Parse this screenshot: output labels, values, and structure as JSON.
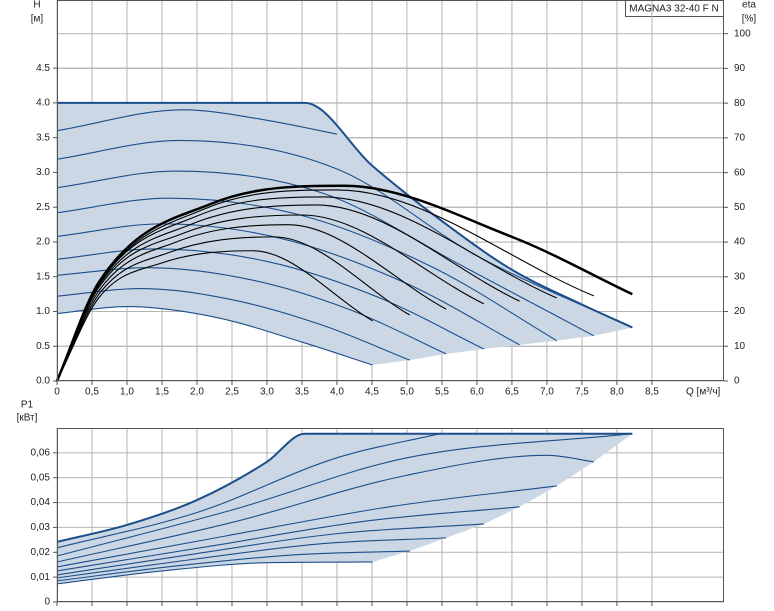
{
  "chart_data": [
    {
      "type": "line",
      "title": "MAGNA3 32-40 F N",
      "y_label": "H",
      "y_unit": "[м]",
      "y2_label": "eta",
      "y2_unit": "[%]",
      "x_label": "Q [м³/ч]",
      "xlim": [
        0,
        9.53
      ],
      "ylim": [
        0,
        5.48
      ],
      "y2lim": [
        0,
        109.7
      ],
      "xticks": [
        0,
        {
          "value": 0.5,
          "label": "0,5"
        },
        {
          "value": 1,
          "label": "1,0"
        },
        {
          "value": 1.5,
          "label": "1,5"
        },
        {
          "value": 2,
          "label": "2,0"
        },
        {
          "value": 2.5,
          "label": "2,5"
        },
        {
          "value": 3,
          "label": "3,0"
        },
        {
          "value": 3.5,
          "label": "3,5"
        },
        {
          "value": 4,
          "label": "4,0"
        },
        {
          "value": 4.5,
          "label": "4,5"
        },
        {
          "value": 5,
          "label": "5,0"
        },
        {
          "value": 5.5,
          "label": "5,5"
        },
        {
          "value": 6,
          "label": "6,0"
        },
        {
          "value": 6.5,
          "label": "6,5"
        },
        {
          "value": 7,
          "label": "7,0"
        },
        {
          "value": 7.5,
          "label": "7,5"
        },
        {
          "value": 8,
          "label": "8,0"
        },
        {
          "value": 8.5,
          "label": "8,5"
        }
      ],
      "yticks": [
        {
          "value": 0,
          "label": "0.0"
        },
        0.5,
        {
          "value": 1,
          "label": "1.0"
        },
        1.5,
        {
          "value": 2,
          "label": "2.0"
        },
        2.5,
        {
          "value": 3,
          "label": "3.0"
        },
        3.5,
        {
          "value": 4,
          "label": "4.0"
        },
        4.5
      ],
      "y2ticks": [
        0,
        10,
        20,
        30,
        40,
        50,
        60,
        70,
        80,
        90,
        100
      ],
      "grid": true,
      "area_color": "#cbd7e4",
      "series": [
        {
          "color": "#1c4f8a",
          "x": [
            0,
            1,
            2.25,
            3.5,
            4.51
          ],
          "values": [
            0.97,
            1.07,
            0.92,
            0.56,
            0.23
          ]
        },
        {
          "color": "#1c4f8a",
          "x": [
            0,
            1.2,
            2.5,
            3.8,
            5.04
          ],
          "values": [
            1.22,
            1.33,
            1.17,
            0.8,
            0.3
          ]
        },
        {
          "color": "#1c4f8a",
          "x": [
            0,
            1.3,
            2.8,
            4.2,
            5.56
          ],
          "values": [
            1.52,
            1.63,
            1.45,
            1.02,
            0.39
          ]
        },
        {
          "color": "#1c4f8a",
          "x": [
            0,
            1.4,
            3,
            4.6,
            6.1
          ],
          "values": [
            1.75,
            1.9,
            1.72,
            1.2,
            0.46
          ]
        },
        {
          "color": "#1c4f8a",
          "x": [
            0,
            1.5,
            3.2,
            5,
            6.61
          ],
          "values": [
            2.08,
            2.26,
            2.05,
            1.4,
            0.52
          ]
        },
        {
          "color": "#1c4f8a",
          "x": [
            0,
            1.6,
            3.5,
            5.4,
            7.14
          ],
          "values": [
            2.42,
            2.63,
            2.38,
            1.62,
            0.58
          ]
        },
        {
          "color": "#1c4f8a",
          "x": [
            0,
            1.7,
            3.8,
            5.8,
            7.67
          ],
          "values": [
            2.78,
            3.02,
            2.7,
            1.65,
            0.65
          ]
        },
        {
          "color": "#1c4f8a",
          "x": [
            0,
            1.75,
            4,
            6,
            8.22
          ],
          "values": [
            3.19,
            3.46,
            3.05,
            1.8,
            0.77
          ]
        },
        {
          "color": "#1c4f8a",
          "x": [
            0,
            1.8,
            3,
            4
          ],
          "values": [
            3.6,
            3.9,
            3.75,
            3.55
          ]
        },
        {
          "color": "#1c4f8a",
          "width": 2,
          "x": [
            0,
            3.54,
            4.5,
            5.5,
            6.5,
            7.5,
            8.22
          ],
          "values": [
            4,
            4,
            3.1,
            2.3,
            1.6,
            1.1,
            0.77
          ]
        },
        {
          "color": "#000000",
          "axis": "y2",
          "x": [
            0,
            0.6,
            1.5,
            2.8,
            4.51
          ],
          "values": [
            0,
            24,
            34,
            37.5,
            17.3
          ]
        },
        {
          "color": "#000000",
          "axis": "y2",
          "x": [
            0,
            0.6,
            1.6,
            3.1,
            5.04
          ],
          "values": [
            0,
            25,
            37,
            41.5,
            19
          ]
        },
        {
          "color": "#000000",
          "axis": "y2",
          "x": [
            0,
            0.6,
            1.7,
            3.3,
            5.56
          ],
          "values": [
            0,
            26,
            40,
            45,
            20.7
          ]
        },
        {
          "color": "#000000",
          "axis": "y2",
          "x": [
            0,
            0.6,
            1.8,
            3.5,
            6.1
          ],
          "values": [
            0,
            27,
            42.5,
            47.8,
            22.2
          ]
        },
        {
          "color": "#000000",
          "axis": "y2",
          "x": [
            0,
            0.6,
            1.9,
            3.7,
            6.61
          ],
          "values": [
            0,
            27.5,
            45,
            50.7,
            23
          ]
        },
        {
          "color": "#000000",
          "axis": "y2",
          "x": [
            0,
            0.6,
            2,
            3.8,
            7.14
          ],
          "values": [
            0,
            28,
            47.5,
            53,
            23.9
          ]
        },
        {
          "color": "#000000",
          "axis": "y2",
          "x": [
            0,
            0.6,
            2.1,
            4,
            7.67
          ],
          "values": [
            0,
            28,
            49.5,
            55,
            24.5
          ]
        },
        {
          "color": "#000000",
          "axis": "y2",
          "width": 2.5,
          "x": [
            0,
            0.6,
            2.2,
            4.1,
            6.5,
            8.22
          ],
          "values": [
            0,
            28.5,
            51,
            56.2,
            41.5,
            25
          ]
        }
      ]
    },
    {
      "type": "line",
      "y_label": "P1",
      "y_unit": "[кВт]",
      "ylim": [
        0,
        0.07
      ],
      "yticks": [
        0,
        {
          "value": 0.01,
          "label": "0,01"
        },
        {
          "value": 0.02,
          "label": "0,02"
        },
        {
          "value": 0.03,
          "label": "0,03"
        },
        {
          "value": 0.04,
          "label": "0,04"
        },
        {
          "value": 0.05,
          "label": "0,05"
        },
        {
          "value": 0.06,
          "label": "0,06"
        }
      ],
      "grid": true,
      "area_color": "#cbd7e4",
      "series": [
        {
          "color": "#1c4f8a",
          "x": [
            0,
            1.5,
            3,
            4.51
          ],
          "values": [
            0.0073,
            0.0125,
            0.0158,
            0.0161
          ]
        },
        {
          "color": "#1c4f8a",
          "x": [
            0,
            1.7,
            3.4,
            5.04
          ],
          "values": [
            0.0085,
            0.0145,
            0.019,
            0.0205
          ]
        },
        {
          "color": "#1c4f8a",
          "x": [
            0,
            1.9,
            3.8,
            5.56
          ],
          "values": [
            0.0097,
            0.017,
            0.0235,
            0.0258
          ]
        },
        {
          "color": "#1c4f8a",
          "x": [
            0,
            2,
            4,
            6.1
          ],
          "values": [
            0.0109,
            0.0195,
            0.0275,
            0.0314
          ]
        },
        {
          "color": "#1c4f8a",
          "x": [
            0,
            2.2,
            4.4,
            6.61
          ],
          "values": [
            0.0125,
            0.0225,
            0.0325,
            0.0383
          ]
        },
        {
          "color": "#1c4f8a",
          "x": [
            0,
            2.4,
            4.8,
            7.14
          ],
          "values": [
            0.0141,
            0.0265,
            0.0385,
            0.0467
          ]
        },
        {
          "color": "#1c4f8a",
          "x": [
            0,
            2.5,
            5,
            7,
            7.67
          ],
          "values": [
            0.0161,
            0.032,
            0.051,
            0.059,
            0.0564
          ]
        },
        {
          "color": "#1c4f8a",
          "x": [
            0,
            2.5,
            5,
            8.22
          ],
          "values": [
            0.0185,
            0.037,
            0.058,
            0.0677
          ]
        },
        {
          "color": "#1c4f8a",
          "x": [
            0,
            2,
            4,
            5.47
          ],
          "values": [
            0.0218,
            0.036,
            0.058,
            0.0677
          ]
        },
        {
          "color": "#1c4f8a",
          "width": 2,
          "x": [
            0,
            1,
            2,
            3,
            3.54,
            8.22
          ],
          "values": [
            0.0242,
            0.031,
            0.041,
            0.0564,
            0.0677,
            0.0677
          ]
        }
      ]
    }
  ]
}
